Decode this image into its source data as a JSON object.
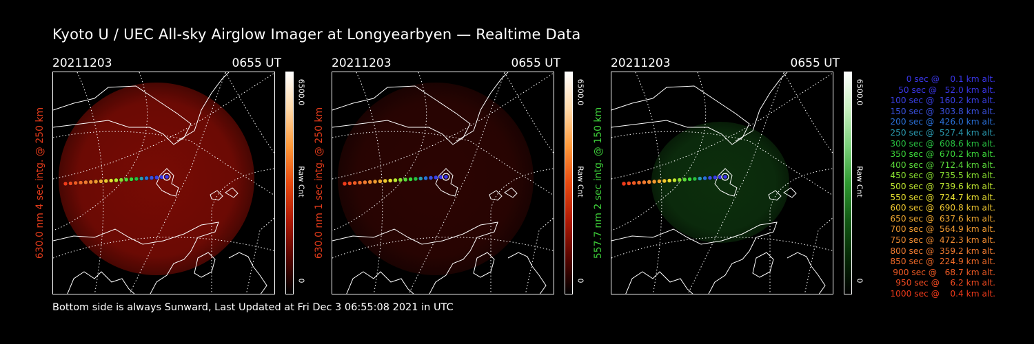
{
  "page": {
    "title": "Kyoto U / UEC All-sky Airglow Imager at Longyearbyen — Realtime Data",
    "footer": "Bottom side is always Sunward, Last Updated at Fri Dec  3 06:55:08 2021 in UTC"
  },
  "panels": [
    {
      "date": "20211203",
      "time": "0655 UT",
      "ylabel": "630.0 nm 4 sec intg. @ 250 km",
      "ylabel_color": "#e03a1a",
      "cbar_max": "6500.0",
      "cbar_min": "0",
      "cbar_unit": "Raw Cnt",
      "image_color": "#8c0d05",
      "image_intensity": 0.85,
      "cbar_colors": [
        "#ffffff",
        "#ffd9a8",
        "#ff9a3a",
        "#e84a10",
        "#b01a05",
        "#5a0500",
        "#000000"
      ]
    },
    {
      "date": "20211203",
      "time": "0655 UT",
      "ylabel": "630.0 nm 1 sec intg. @ 250 km",
      "ylabel_color": "#e03a1a",
      "cbar_max": "6500.0",
      "cbar_min": "0",
      "cbar_unit": "Raw Cnt",
      "image_color": "#3a0603",
      "image_intensity": 0.75,
      "cbar_colors": [
        "#ffffff",
        "#ffd9a8",
        "#ff9a3a",
        "#e84a10",
        "#b01a05",
        "#5a0500",
        "#000000"
      ]
    },
    {
      "date": "20211203",
      "time": "0655 UT",
      "ylabel": "557.7 nm 2 sec intg. @ 150 km",
      "ylabel_color": "#3ecf3a",
      "cbar_max": "6500.0",
      "cbar_min": "0",
      "cbar_unit": "Raw Cnt",
      "image_color": "#0f3a10",
      "image_intensity": 0.8,
      "cbar_colors": [
        "#ffffff",
        "#c8f0c0",
        "#7ad07a",
        "#2e9a30",
        "#125a14",
        "#062a06",
        "#000000"
      ]
    }
  ],
  "legend": [
    {
      "text": "0 sec @    0.1 km alt.",
      "color": "#3a36e8"
    },
    {
      "text": "50 sec @   52.0 km alt.",
      "color": "#3a36e8"
    },
    {
      "text": "100 sec @  160.2 km alt.",
      "color": "#3a40e8"
    },
    {
      "text": "150 sec @  303.8 km alt.",
      "color": "#3a52e0"
    },
    {
      "text": "200 sec @  426.0 km alt.",
      "color": "#2a70d8"
    },
    {
      "text": "250 sec @  527.4 km alt.",
      "color": "#2a9ab0"
    },
    {
      "text": "300 sec @  608.6 km alt.",
      "color": "#28c040"
    },
    {
      "text": "350 sec @  670.2 km alt.",
      "color": "#3cd83a"
    },
    {
      "text": "400 sec @  712.4 km alt.",
      "color": "#5ad83a"
    },
    {
      "text": "450 sec @  735.5 km alt.",
      "color": "#88e030"
    },
    {
      "text": "500 sec @  739.6 km alt.",
      "color": "#c0e830"
    },
    {
      "text": "550 sec @  724.7 km alt.",
      "color": "#e8e030"
    },
    {
      "text": "600 sec @  690.8 km alt.",
      "color": "#f0c830"
    },
    {
      "text": "650 sec @  637.6 km alt.",
      "color": "#f0a830"
    },
    {
      "text": "700 sec @  564.9 km alt.",
      "color": "#f09a30"
    },
    {
      "text": "750 sec @  472.3 km alt.",
      "color": "#f08a30"
    },
    {
      "text": "800 sec @  359.2 km alt.",
      "color": "#f07a30"
    },
    {
      "text": "850 sec @  224.9 km alt.",
      "color": "#f06a28"
    },
    {
      "text": "900 sec @   68.7 km alt.",
      "color": "#f05a24"
    },
    {
      "text": "950 sec @    6.2 km alt.",
      "color": "#f04a20"
    },
    {
      "text": "1000 sec @    0.4 km alt.",
      "color": "#f03a1a"
    }
  ]
}
